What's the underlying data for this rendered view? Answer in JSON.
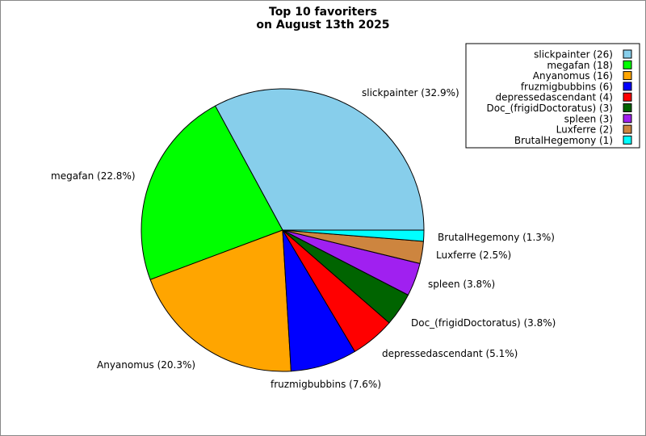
{
  "chart_data": {
    "type": "pie",
    "title": "Top 10 favoriters",
    "subtitle": "on August 13th 2025",
    "legend_position": "top-right",
    "slices": [
      {
        "name": "slickpainter",
        "count": 26,
        "percent_label": "slickpainter (32.9%)",
        "legend_label": "slickpainter (26)",
        "color": "#87CEEB"
      },
      {
        "name": "megafan",
        "count": 18,
        "percent_label": "megafan (22.8%)",
        "legend_label": "megafan (18)",
        "color": "#00FF00"
      },
      {
        "name": "Anyanomus",
        "count": 16,
        "percent_label": "Anyanomus (20.3%)",
        "legend_label": "Anyanomus (16)",
        "color": "#FFA500"
      },
      {
        "name": "fruzmigbubbins",
        "count": 6,
        "percent_label": "fruzmigbubbins (7.6%)",
        "legend_label": "fruzmigbubbins (6)",
        "color": "#0000FF"
      },
      {
        "name": "depressedascendant",
        "count": 4,
        "percent_label": "depressedascendant (5.1%)",
        "legend_label": "depressedascendant (4)",
        "color": "#FF0000"
      },
      {
        "name": "Doc_(frigidDoctoratus)",
        "count": 3,
        "percent_label": "Doc_(frigidDoctoratus) (3.8%)",
        "legend_label": "Doc_(frigidDoctoratus) (3)",
        "color": "#006400"
      },
      {
        "name": "spleen",
        "count": 3,
        "percent_label": "spleen (3.8%)",
        "legend_label": "spleen (3)",
        "color": "#A020F0"
      },
      {
        "name": "Luxferre",
        "count": 2,
        "percent_label": "Luxferre (2.5%)",
        "legend_label": "Luxferre (2)",
        "color": "#CD853F"
      },
      {
        "name": "BrutalHegemony",
        "count": 1,
        "percent_label": "BrutalHegemony (1.3%)",
        "legend_label": "BrutalHegemony (1)",
        "color": "#00FFFF"
      }
    ]
  }
}
